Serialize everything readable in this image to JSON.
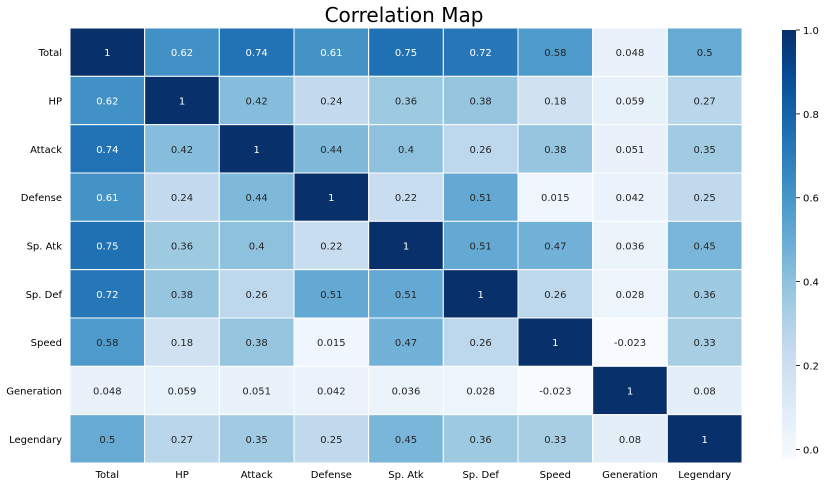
{
  "chart_data": {
    "type": "heatmap",
    "title": "Correlation Map",
    "xlabel": "",
    "ylabel": "",
    "rows": [
      "Total",
      "HP",
      "Attack",
      "Defense",
      "Sp. Atk",
      "Sp. Def",
      "Speed",
      "Generation",
      "Legendary"
    ],
    "columns": [
      "Total",
      "HP",
      "Attack",
      "Defense",
      "Sp. Atk",
      "Sp. Def",
      "Speed",
      "Generation",
      "Legendary"
    ],
    "values": [
      [
        1,
        0.62,
        0.74,
        0.61,
        0.75,
        0.72,
        0.58,
        0.048,
        0.5
      ],
      [
        0.62,
        1,
        0.42,
        0.24,
        0.36,
        0.38,
        0.18,
        0.059,
        0.27
      ],
      [
        0.74,
        0.42,
        1,
        0.44,
        0.4,
        0.26,
        0.38,
        0.051,
        0.35
      ],
      [
        0.61,
        0.24,
        0.44,
        1,
        0.22,
        0.51,
        0.015,
        0.042,
        0.25
      ],
      [
        0.75,
        0.36,
        0.4,
        0.22,
        1,
        0.51,
        0.47,
        0.036,
        0.45
      ],
      [
        0.72,
        0.38,
        0.26,
        0.51,
        0.51,
        1,
        0.26,
        0.028,
        0.36
      ],
      [
        0.58,
        0.18,
        0.38,
        0.015,
        0.47,
        0.26,
        1,
        -0.023,
        0.33
      ],
      [
        0.048,
        0.059,
        0.051,
        0.042,
        0.036,
        0.028,
        -0.023,
        1,
        0.08
      ],
      [
        0.5,
        0.27,
        0.35,
        0.25,
        0.45,
        0.36,
        0.33,
        0.08,
        1
      ]
    ],
    "colormap": "Blues",
    "vmin": -0.023,
    "vmax": 1,
    "annotations": true,
    "colorbar": {
      "ticks": [
        0.0,
        0.2,
        0.4,
        0.6,
        0.8,
        1.0
      ],
      "tick_labels": [
        "0.0",
        "0.2",
        "0.4",
        "0.6",
        "0.8",
        "1.0"
      ],
      "placement": "right"
    },
    "grid": false,
    "cell_border_color": "#ffffff"
  }
}
